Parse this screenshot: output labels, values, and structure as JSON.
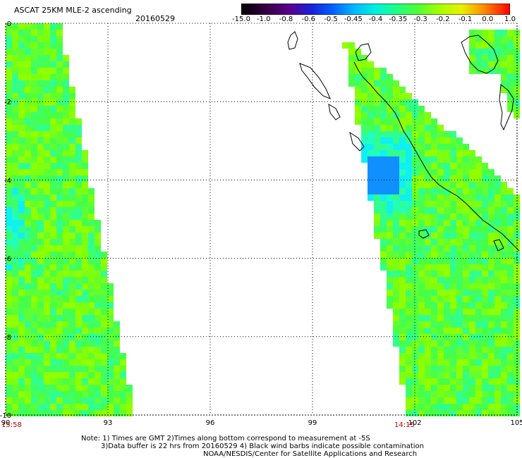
{
  "header": {
    "title": "ASCAT 25KM MLE-2 ascending",
    "date": "20160529"
  },
  "colorbar": {
    "labels": [
      "-15.0",
      "-1.0",
      "-0.8",
      "-0.6",
      "-0.5",
      "-0.45",
      "-0.4",
      "-0.35",
      "-0.3",
      "-0.2",
      "-0.1",
      "0.0",
      "1.0"
    ],
    "colors": [
      "#000000",
      "#3a0048",
      "#5a0090",
      "#2a00c8",
      "#0030ff",
      "#0090ff",
      "#00e0ff",
      "#00ffb0",
      "#40ff40",
      "#90ff00",
      "#d8ff00",
      "#ffcc00",
      "#ff6000",
      "#ff0000"
    ]
  },
  "axes": {
    "lon_labels": [
      "90",
      "93",
      "96",
      "99",
      "102",
      "105"
    ],
    "lat_labels": [
      "0",
      "-2",
      "-4",
      "-6",
      "-8",
      "-10"
    ]
  },
  "times": {
    "left": "15:58",
    "right": "14:15"
  },
  "notes": {
    "line1": "Note: 1) Times are GMT 2)Times along bottom correspond to measurement at -5S",
    "line2": "3)Data buffer is 22 hrs from 20160529 4) Black wind barbs indicate possible contamination",
    "line3": "NOAA/NESDIS/Center for Satellite Applications and Research"
  }
}
